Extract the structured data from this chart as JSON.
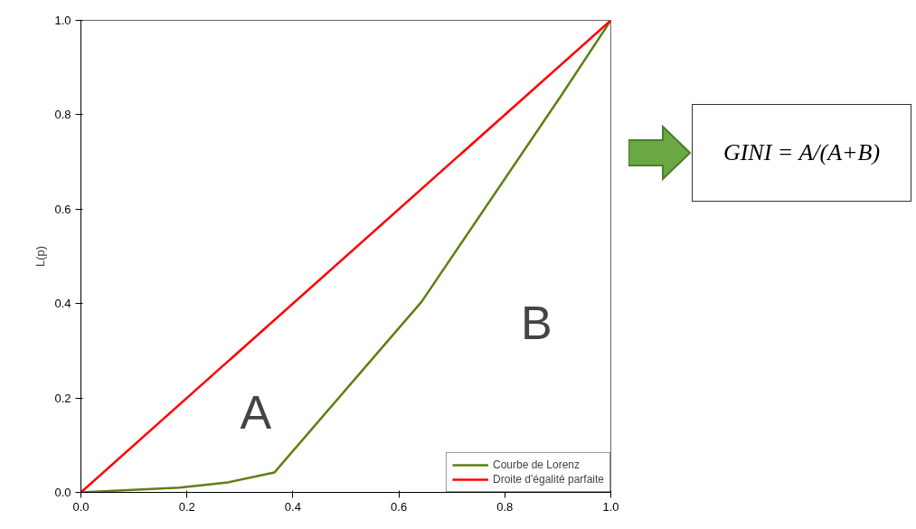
{
  "chart_data": {
    "type": "line",
    "ylabel": "L(p)",
    "xlim": [
      0,
      1
    ],
    "ylim": [
      0,
      1
    ],
    "xticks": [
      {
        "value": 0,
        "label": "0.0"
      },
      0.2,
      0.4,
      0.6,
      0.8,
      {
        "value": 1,
        "label": "1.0"
      }
    ],
    "yticks": [
      {
        "value": 0,
        "label": "0.0"
      },
      0.2,
      0.4,
      0.6,
      0.8,
      {
        "value": 1,
        "label": "1.0"
      }
    ],
    "series": [
      {
        "name": "Courbe de Lorenz",
        "color": "#5f7f13",
        "x": [
          0,
          0.186,
          0.277,
          0.365,
          0.643,
          0.906,
          1
        ],
        "values": [
          0,
          0.01,
          0.021,
          0.042,
          0.404,
          0.84,
          1
        ]
      },
      {
        "name": "Droite d'égalité parfaite",
        "color": "#ff0000",
        "x": [
          0,
          1
        ],
        "values": [
          0,
          1
        ]
      }
    ],
    "annotations": [
      "A",
      "B",
      "GINI = A/(A+B)"
    ],
    "legend": "bottom right",
    "grid": false,
    "line_style": "solid"
  }
}
